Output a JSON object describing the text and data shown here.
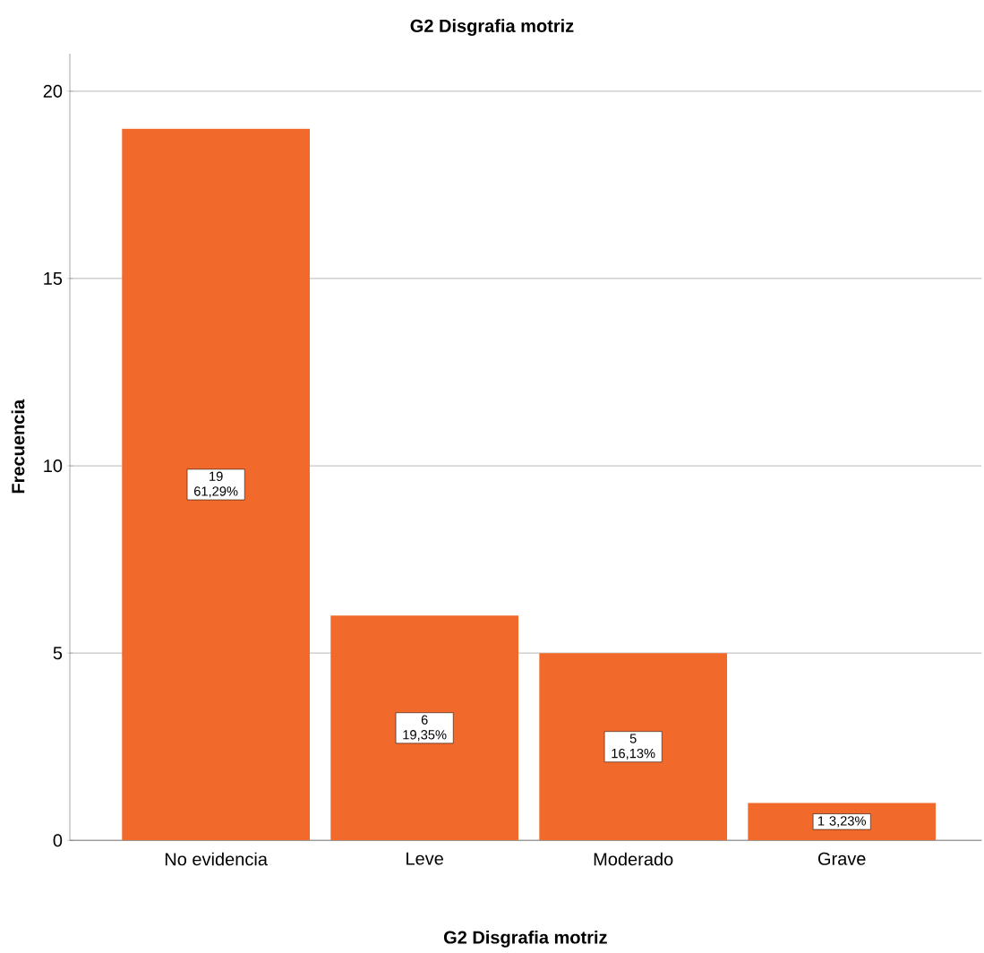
{
  "chart_data": {
    "type": "bar",
    "title": "G2 Disgrafia motriz",
    "xlabel": "G2 Disgrafia motriz",
    "ylabel": "Frecuencia",
    "categories": [
      "No evidencia",
      "Leve",
      "Moderado",
      "Grave"
    ],
    "values": [
      19,
      6,
      5,
      1
    ],
    "color": "#f26a2b",
    "value_labels": [
      "19 61,29%",
      "6 19,35%",
      "5 16,13%",
      "1 3,23%"
    ],
    "ylim": [
      0,
      21
    ],
    "yticks": [
      0,
      5,
      10,
      15,
      20
    ],
    "grid": "y"
  }
}
